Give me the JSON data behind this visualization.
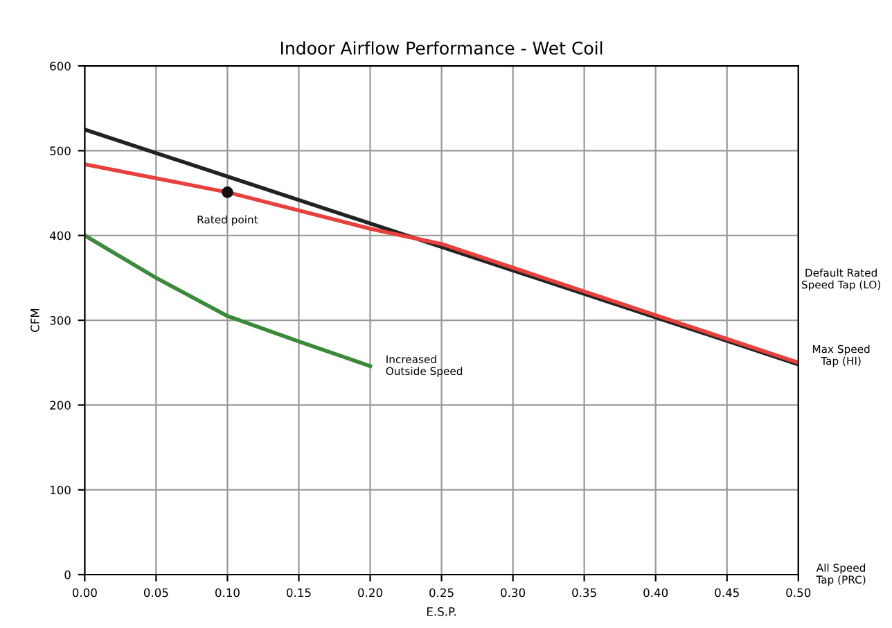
{
  "chart_data": {
    "type": "line",
    "title": "Indoor Airflow Performance - Wet Coil",
    "xlabel": "E.S.P.",
    "ylabel": "CFM",
    "xlim": [
      0,
      0.5
    ],
    "ylim": [
      0,
      600
    ],
    "xticks": [
      {
        "value": 0,
        "label": "0.00"
      },
      {
        "value": 0.05,
        "label": "0.05"
      },
      {
        "value": 0.1,
        "label": "0.10"
      },
      {
        "value": 0.15,
        "label": "0.15"
      },
      {
        "value": 0.2,
        "label": "0.20"
      },
      {
        "value": 0.25,
        "label": "0.25"
      },
      {
        "value": 0.3,
        "label": "0.30"
      },
      {
        "value": 0.35,
        "label": "0.35"
      },
      {
        "value": 0.4,
        "label": "0.40"
      },
      {
        "value": 0.45,
        "label": "0.45"
      },
      {
        "value": 0.5,
        "label": "0.50"
      }
    ],
    "yticks": [
      0,
      100,
      200,
      300,
      400,
      500,
      600
    ],
    "grid": true,
    "legend": false,
    "series": [
      {
        "color": "#222222",
        "x": [
          0,
          0.5
        ],
        "values": [
          525,
          248
        ]
      },
      {
        "color": "#e8403c",
        "x": [
          0,
          0.1,
          0.2,
          0.25,
          0.5
        ],
        "values": [
          484,
          451,
          408,
          390,
          250
        ]
      },
      {
        "color": "#3a8a3a",
        "x": [
          0,
          0.05,
          0.1,
          0.15,
          0.2
        ],
        "values": [
          400,
          350,
          305,
          275,
          246
        ]
      },
      {
        "type": "scatter",
        "color": "#111111",
        "marker": "circle",
        "x": [
          0.1
        ],
        "values": [
          451
        ]
      }
    ],
    "annotations": [
      {
        "text": "Rated point",
        "x": 0.1,
        "y": 451
      },
      {
        "text": "Increased\nOutside Speed",
        "x": 0.2,
        "y": 246
      },
      "Default Rated\nSpeed Tap (LO)",
      "Max Speed\nTap (HI)",
      "All Speed\nTap (PRC)"
    ]
  }
}
